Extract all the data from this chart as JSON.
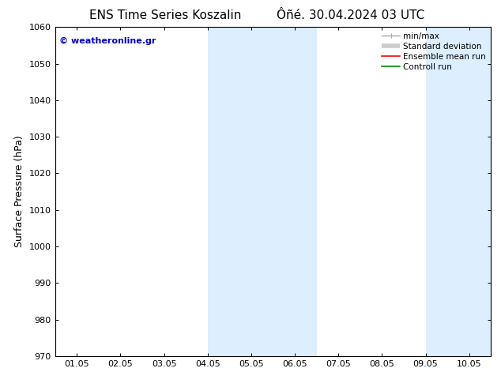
{
  "title_left": "ENS Time Series Koszalin",
  "title_right": "Ôñé. 30.04.2024 03 UTC",
  "ylabel": "Surface Pressure (hPa)",
  "ylim": [
    970,
    1060
  ],
  "yticks": [
    970,
    980,
    990,
    1000,
    1010,
    1020,
    1030,
    1040,
    1050,
    1060
  ],
  "xtick_labels": [
    "01.05",
    "02.05",
    "03.05",
    "04.05",
    "05.05",
    "06.05",
    "07.05",
    "08.05",
    "09.05",
    "10.05"
  ],
  "xlim": [
    -0.5,
    9.5
  ],
  "shaded_regions": [
    {
      "xstart": 3.0,
      "xend": 5.5,
      "color": "#ddeeff"
    },
    {
      "xstart": 8.0,
      "xend": 9.5,
      "color": "#ddeeff"
    }
  ],
  "watermark": "© weatheronline.gr",
  "watermark_color": "#0000cc",
  "legend_items": [
    {
      "label": "min/max",
      "color": "#aaaaaa",
      "lw": 1.0
    },
    {
      "label": "Standard deviation",
      "color": "#cccccc",
      "lw": 4
    },
    {
      "label": "Ensemble mean run",
      "color": "#ff0000",
      "lw": 1.2
    },
    {
      "label": "Controll run",
      "color": "#008800",
      "lw": 1.2
    }
  ],
  "bg_color": "#ffffff",
  "spine_color": "#000000",
  "title_fontsize": 11,
  "tick_fontsize": 8,
  "ylabel_fontsize": 9,
  "legend_fontsize": 7.5,
  "watermark_fontsize": 8
}
